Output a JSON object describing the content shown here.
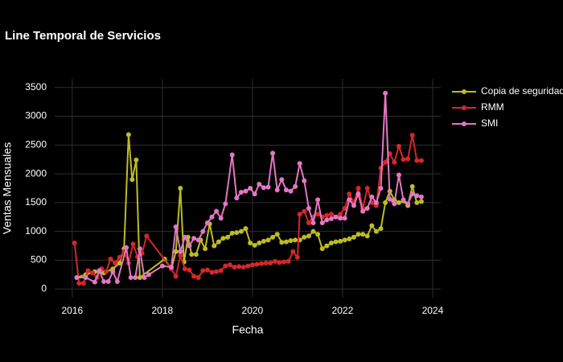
{
  "chart_data": {
    "type": "line",
    "title": "Line Temporal de Servicios",
    "x_label": "Fecha",
    "y_label": "Ventas Mensuales",
    "xlim": [
      2015.61,
      2024.18
    ],
    "xticks": [
      2016,
      2018,
      2020,
      2022,
      2024
    ],
    "ylim": [
      -150,
      3650
    ],
    "yticks": [
      0,
      500,
      1000,
      1500,
      2000,
      2500,
      3000,
      3500
    ],
    "grid": true,
    "legend": "right",
    "series": [
      {
        "name": "Copia de seguridad",
        "color": "#bcbd22",
        "x": [
          2016.1,
          2016.3,
          2016.5,
          2016.7,
          2016.9,
          2017.05,
          2017.15,
          2017.25,
          2017.33,
          2017.42,
          2017.5,
          2018.05,
          2018.2,
          2018.3,
          2018.4,
          2018.48,
          2018.57,
          2018.65,
          2018.75,
          2018.85,
          2018.95,
          2019.05,
          2019.15,
          2019.25,
          2019.35,
          2019.45,
          2019.55,
          2019.65,
          2019.75,
          2019.85,
          2019.95,
          2020.05,
          2020.15,
          2020.25,
          2020.35,
          2020.45,
          2020.55,
          2020.65,
          2020.75,
          2020.85,
          2020.95,
          2021.05,
          2021.15,
          2021.25,
          2021.35,
          2021.45,
          2021.55,
          2021.65,
          2021.75,
          2021.85,
          2021.95,
          2022.05,
          2022.15,
          2022.25,
          2022.35,
          2022.45,
          2022.55,
          2022.65,
          2022.75,
          2022.85,
          2022.95,
          2023.05,
          2023.15,
          2023.25,
          2023.35,
          2023.45,
          2023.55,
          2023.65,
          2023.75
        ],
        "values": [
          200,
          250,
          300,
          280,
          350,
          450,
          700,
          2680,
          1900,
          2240,
          200,
          520,
          350,
          650,
          1750,
          470,
          900,
          600,
          600,
          850,
          700,
          1130,
          750,
          820,
          880,
          900,
          970,
          980,
          1000,
          1050,
          800,
          760,
          800,
          830,
          850,
          900,
          950,
          810,
          820,
          840,
          850,
          850,
          900,
          920,
          1000,
          950,
          700,
          750,
          800,
          820,
          830,
          850,
          870,
          900,
          950,
          950,
          920,
          1100,
          1000,
          1050,
          1500,
          1700,
          1550,
          1500,
          1530,
          1450,
          1780,
          1500,
          1520
        ]
      },
      {
        "name": "RMM",
        "color": "#d62728",
        "x": [
          2016.05,
          2016.15,
          2016.25,
          2016.35,
          2016.45,
          2016.55,
          2016.65,
          2016.75,
          2016.85,
          2016.95,
          2017.05,
          2017.15,
          2017.25,
          2017.35,
          2017.45,
          2017.55,
          2017.65,
          2018.2,
          2018.3,
          2018.4,
          2018.5,
          2018.6,
          2018.7,
          2018.8,
          2018.9,
          2019.0,
          2019.1,
          2019.2,
          2019.3,
          2019.4,
          2019.5,
          2019.6,
          2019.7,
          2019.8,
          2019.9,
          2020.0,
          2020.1,
          2020.2,
          2020.3,
          2020.4,
          2020.5,
          2020.6,
          2020.7,
          2020.8,
          2020.9,
          2021.0,
          2021.05,
          2021.15,
          2021.25,
          2021.35,
          2021.45,
          2021.55,
          2021.65,
          2021.75,
          2021.85,
          2021.95,
          2022.05,
          2022.15,
          2022.25,
          2022.35,
          2022.45,
          2022.55,
          2022.65,
          2022.75,
          2022.85,
          2022.95,
          2023.05,
          2023.15,
          2023.25,
          2023.35,
          2023.45,
          2023.55,
          2023.65,
          2023.75
        ],
        "values": [
          800,
          100,
          100,
          320,
          280,
          200,
          350,
          300,
          520,
          450,
          550,
          650,
          450,
          780,
          560,
          620,
          920,
          350,
          220,
          580,
          350,
          330,
          220,
          200,
          320,
          330,
          290,
          300,
          320,
          400,
          420,
          380,
          390,
          380,
          400,
          420,
          430,
          440,
          450,
          450,
          480,
          460,
          470,
          480,
          650,
          550,
          1300,
          1350,
          1150,
          1250,
          1300,
          1250,
          1280,
          1300,
          1250,
          1300,
          1400,
          1650,
          1500,
          1750,
          1400,
          1750,
          1500,
          1450,
          2100,
          2200,
          2350,
          2200,
          2480,
          2250,
          2260,
          2670,
          2230,
          2230
        ]
      },
      {
        "name": "SMI",
        "color": "#e377c2",
        "x": [
          2016.1,
          2016.3,
          2016.5,
          2016.6,
          2016.7,
          2016.8,
          2016.9,
          2017.0,
          2017.2,
          2017.3,
          2017.4,
          2017.5,
          2017.6,
          2017.7,
          2018.0,
          2018.2,
          2018.3,
          2018.4,
          2018.5,
          2018.6,
          2018.7,
          2018.8,
          2018.9,
          2019.0,
          2019.1,
          2019.2,
          2019.3,
          2019.4,
          2019.55,
          2019.65,
          2019.75,
          2019.85,
          2019.95,
          2020.05,
          2020.15,
          2020.25,
          2020.35,
          2020.45,
          2020.55,
          2020.65,
          2020.75,
          2020.85,
          2020.95,
          2021.05,
          2021.15,
          2021.25,
          2021.35,
          2021.45,
          2021.55,
          2021.65,
          2021.75,
          2021.85,
          2021.95,
          2022.05,
          2022.15,
          2022.25,
          2022.35,
          2022.45,
          2022.55,
          2022.65,
          2022.75,
          2022.85,
          2022.95,
          2023.05,
          2023.15,
          2023.25,
          2023.35,
          2023.45,
          2023.55,
          2023.65,
          2023.75
        ],
        "values": [
          200,
          200,
          120,
          320,
          130,
          130,
          300,
          130,
          720,
          200,
          200,
          700,
          200,
          250,
          400,
          380,
          1080,
          650,
          900,
          750,
          880,
          850,
          1000,
          1150,
          1250,
          1350,
          1230,
          1480,
          2330,
          1580,
          1680,
          1700,
          1750,
          1650,
          1820,
          1760,
          1770,
          2360,
          1720,
          1900,
          1720,
          1700,
          1780,
          2180,
          1880,
          1400,
          1150,
          1550,
          1150,
          1200,
          1220,
          1250,
          1230,
          1230,
          1550,
          1450,
          1650,
          1350,
          1400,
          1600,
          1500,
          1750,
          3400,
          1560,
          1480,
          1980,
          1550,
          1480,
          1650,
          1620,
          1600
        ]
      }
    ]
  }
}
